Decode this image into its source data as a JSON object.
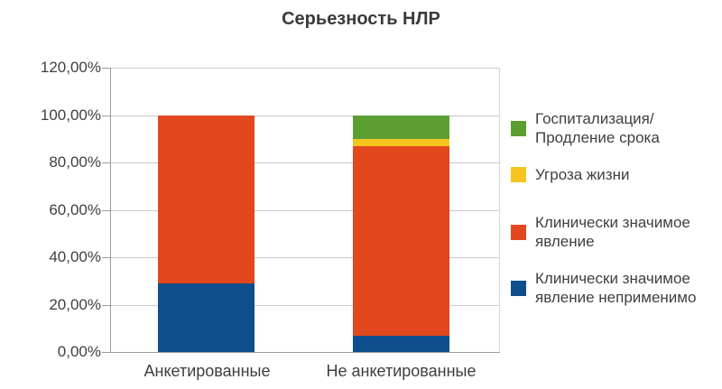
{
  "chart_data": {
    "type": "bar",
    "stacked": true,
    "title": "Серьезность НЛР",
    "categories": [
      "Анкетированные",
      "Не анкетированные"
    ],
    "series": [
      {
        "name": "Клинически значимое явление неприменимо",
        "color": "#0f4e8d",
        "values": [
          29,
          7
        ]
      },
      {
        "name": "Клинически значимое явление",
        "color": "#e2471d",
        "values": [
          71,
          80
        ]
      },
      {
        "name": "Угроза жизни",
        "color": "#f6c61e",
        "values": [
          0,
          3
        ]
      },
      {
        "name": "Госпитализация/Продление срока",
        "color": "#5b9e31",
        "values": [
          0,
          10
        ]
      }
    ],
    "unit": "%",
    "ylim": [
      0,
      120
    ],
    "yticks": [
      "120,00%",
      "100,00%",
      "80,00%",
      "60,00%",
      "40,00%",
      "20,00%",
      "0,00%"
    ],
    "grid": true,
    "legend_position": "right"
  },
  "legend": {
    "items": [
      {
        "lines": [
          "Госпитализация/",
          "Продление срока"
        ],
        "series_index": 3
      },
      {
        "lines": [
          "Угроза жизни",
          ""
        ],
        "series_index": 2
      },
      {
        "lines": [
          "Клинически значимое",
          "явление"
        ],
        "series_index": 1
      },
      {
        "lines": [
          "Клинически значимое",
          "явление неприменимо"
        ],
        "series_index": 0
      }
    ]
  },
  "colors": {
    "background": "#ffffff",
    "gridline": "#c9c9c9",
    "axis": "#9b9b9b",
    "text": "#3f3f3f"
  }
}
